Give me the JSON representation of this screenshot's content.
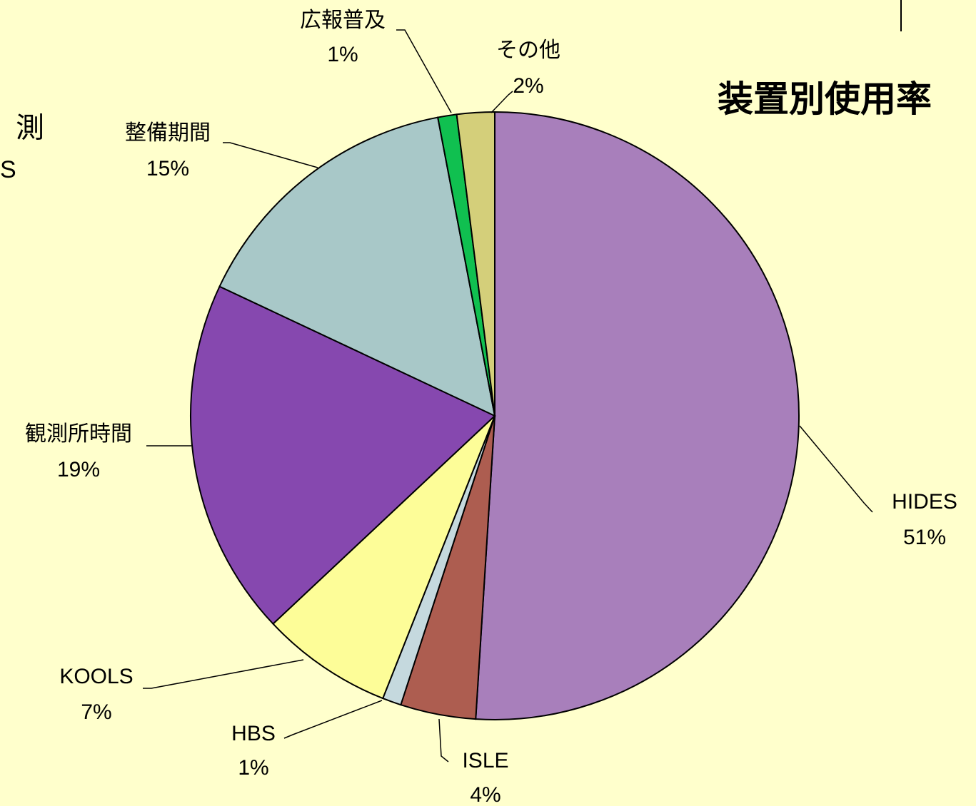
{
  "chart_data": {
    "type": "pie",
    "title": "装置別使用率",
    "categories": [
      "HIDES",
      "ISLE",
      "HBS",
      "KOOLS",
      "観測所時間",
      "整備期間",
      "広報普及",
      "その他"
    ],
    "values": [
      51,
      4,
      1,
      7,
      19,
      15,
      1,
      2
    ],
    "value_labels": [
      "51%",
      "4%",
      "1%",
      "7%",
      "19%",
      "15%",
      "1%",
      "2%"
    ],
    "colors": [
      "#a87fbb",
      "#ad5d50",
      "#c5d9de",
      "#fdfd98",
      "#8648af",
      "#a8c8c8",
      "#10c050",
      "#d4cf7a"
    ],
    "fragments": [
      "測",
      "S"
    ]
  }
}
